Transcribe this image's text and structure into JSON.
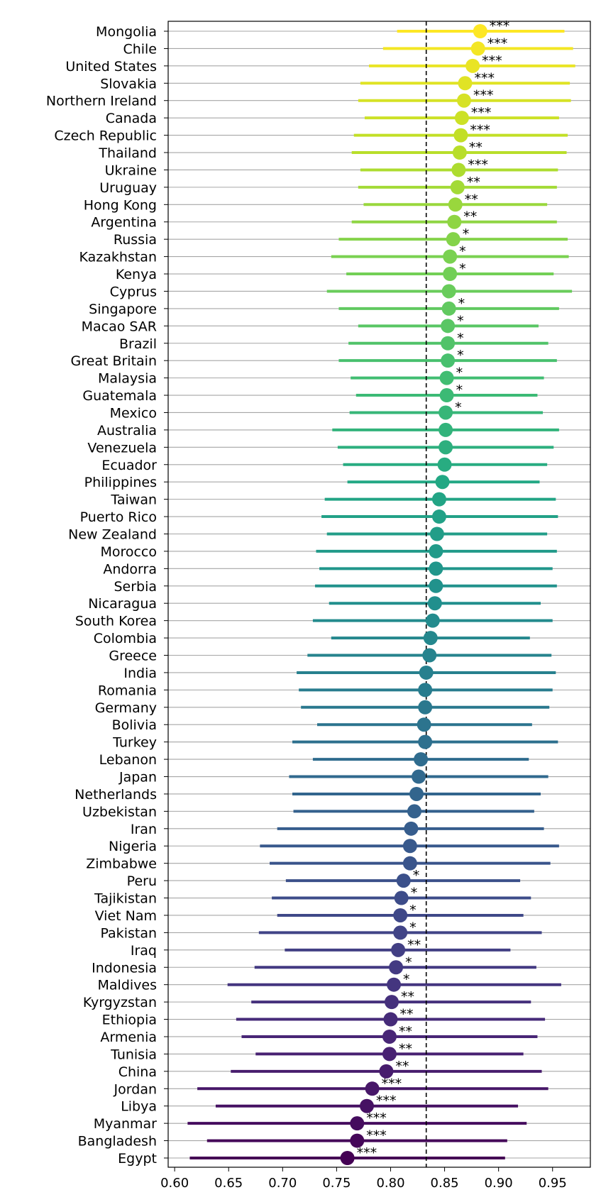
{
  "chart_data": {
    "type": "dot-range",
    "title": "",
    "xlabel": "",
    "ylabel": "",
    "xlim": [
      0.594,
      0.985
    ],
    "xticks": [
      0.6,
      0.65,
      0.7,
      0.75,
      0.8,
      0.85,
      0.9,
      0.95
    ],
    "xtick_labels": [
      "0.60",
      "0.65",
      "0.70",
      "0.75",
      "0.80",
      "0.85",
      "0.90",
      "0.95"
    ],
    "reference_line": 0.833,
    "colormap": "viridis",
    "series": [
      {
        "country": "Mongolia",
        "estimate": 0.883,
        "low": 0.806,
        "high": 0.961,
        "sig": "***"
      },
      {
        "country": "Chile",
        "estimate": 0.881,
        "low": 0.793,
        "high": 0.969,
        "sig": "***"
      },
      {
        "country": "United States",
        "estimate": 0.876,
        "low": 0.78,
        "high": 0.971,
        "sig": "***"
      },
      {
        "country": "Slovakia",
        "estimate": 0.869,
        "low": 0.772,
        "high": 0.966,
        "sig": "***"
      },
      {
        "country": "Northern Ireland",
        "estimate": 0.868,
        "low": 0.77,
        "high": 0.967,
        "sig": "***"
      },
      {
        "country": "Canada",
        "estimate": 0.866,
        "low": 0.776,
        "high": 0.956,
        "sig": "***"
      },
      {
        "country": "Czech Republic",
        "estimate": 0.865,
        "low": 0.766,
        "high": 0.964,
        "sig": "***"
      },
      {
        "country": "Thailand",
        "estimate": 0.864,
        "low": 0.764,
        "high": 0.963,
        "sig": "**"
      },
      {
        "country": "Ukraine",
        "estimate": 0.863,
        "low": 0.772,
        "high": 0.955,
        "sig": "***"
      },
      {
        "country": "Uruguay",
        "estimate": 0.862,
        "low": 0.77,
        "high": 0.954,
        "sig": "**"
      },
      {
        "country": "Hong Kong",
        "estimate": 0.86,
        "low": 0.775,
        "high": 0.945,
        "sig": "**"
      },
      {
        "country": "Argentina",
        "estimate": 0.859,
        "low": 0.764,
        "high": 0.954,
        "sig": "**"
      },
      {
        "country": "Russia",
        "estimate": 0.858,
        "low": 0.752,
        "high": 0.964,
        "sig": "*"
      },
      {
        "country": "Kazakhstan",
        "estimate": 0.855,
        "low": 0.745,
        "high": 0.965,
        "sig": "*"
      },
      {
        "country": "Kenya",
        "estimate": 0.855,
        "low": 0.759,
        "high": 0.951,
        "sig": "*"
      },
      {
        "country": "Cyprus",
        "estimate": 0.854,
        "low": 0.741,
        "high": 0.968,
        "sig": ""
      },
      {
        "country": "Singapore",
        "estimate": 0.854,
        "low": 0.752,
        "high": 0.956,
        "sig": "*"
      },
      {
        "country": "Macao SAR",
        "estimate": 0.853,
        "low": 0.77,
        "high": 0.937,
        "sig": "*"
      },
      {
        "country": "Brazil",
        "estimate": 0.853,
        "low": 0.761,
        "high": 0.946,
        "sig": "*"
      },
      {
        "country": "Great Britain",
        "estimate": 0.853,
        "low": 0.752,
        "high": 0.954,
        "sig": "*"
      },
      {
        "country": "Malaysia",
        "estimate": 0.852,
        "low": 0.763,
        "high": 0.942,
        "sig": "*"
      },
      {
        "country": "Guatemala",
        "estimate": 0.852,
        "low": 0.768,
        "high": 0.936,
        "sig": "*"
      },
      {
        "country": "Mexico",
        "estimate": 0.851,
        "low": 0.762,
        "high": 0.941,
        "sig": "*"
      },
      {
        "country": "Australia",
        "estimate": 0.851,
        "low": 0.746,
        "high": 0.956,
        "sig": ""
      },
      {
        "country": "Venezuela",
        "estimate": 0.851,
        "low": 0.751,
        "high": 0.951,
        "sig": ""
      },
      {
        "country": "Ecuador",
        "estimate": 0.85,
        "low": 0.756,
        "high": 0.945,
        "sig": ""
      },
      {
        "country": "Philippines",
        "estimate": 0.848,
        "low": 0.76,
        "high": 0.938,
        "sig": ""
      },
      {
        "country": "Taiwan",
        "estimate": 0.845,
        "low": 0.739,
        "high": 0.953,
        "sig": ""
      },
      {
        "country": "Puerto Rico",
        "estimate": 0.845,
        "low": 0.736,
        "high": 0.955,
        "sig": ""
      },
      {
        "country": "New Zealand",
        "estimate": 0.843,
        "low": 0.741,
        "high": 0.945,
        "sig": ""
      },
      {
        "country": "Morocco",
        "estimate": 0.842,
        "low": 0.731,
        "high": 0.954,
        "sig": ""
      },
      {
        "country": "Andorra",
        "estimate": 0.842,
        "low": 0.734,
        "high": 0.95,
        "sig": ""
      },
      {
        "country": "Serbia",
        "estimate": 0.842,
        "low": 0.73,
        "high": 0.954,
        "sig": ""
      },
      {
        "country": "Nicaragua",
        "estimate": 0.841,
        "low": 0.743,
        "high": 0.939,
        "sig": ""
      },
      {
        "country": "South Korea",
        "estimate": 0.839,
        "low": 0.728,
        "high": 0.95,
        "sig": ""
      },
      {
        "country": "Colombia",
        "estimate": 0.837,
        "low": 0.745,
        "high": 0.929,
        "sig": ""
      },
      {
        "country": "Greece",
        "estimate": 0.836,
        "low": 0.723,
        "high": 0.949,
        "sig": ""
      },
      {
        "country": "India",
        "estimate": 0.833,
        "low": 0.713,
        "high": 0.953,
        "sig": ""
      },
      {
        "country": "Romania",
        "estimate": 0.832,
        "low": 0.715,
        "high": 0.95,
        "sig": ""
      },
      {
        "country": "Germany",
        "estimate": 0.832,
        "low": 0.717,
        "high": 0.947,
        "sig": ""
      },
      {
        "country": "Bolivia",
        "estimate": 0.831,
        "low": 0.732,
        "high": 0.931,
        "sig": ""
      },
      {
        "country": "Turkey",
        "estimate": 0.832,
        "low": 0.709,
        "high": 0.955,
        "sig": ""
      },
      {
        "country": "Lebanon",
        "estimate": 0.828,
        "low": 0.728,
        "high": 0.928,
        "sig": ""
      },
      {
        "country": "Japan",
        "estimate": 0.826,
        "low": 0.706,
        "high": 0.946,
        "sig": ""
      },
      {
        "country": "Netherlands",
        "estimate": 0.824,
        "low": 0.709,
        "high": 0.939,
        "sig": ""
      },
      {
        "country": "Uzbekistan",
        "estimate": 0.822,
        "low": 0.71,
        "high": 0.933,
        "sig": ""
      },
      {
        "country": "Iran",
        "estimate": 0.819,
        "low": 0.695,
        "high": 0.942,
        "sig": ""
      },
      {
        "country": "Nigeria",
        "estimate": 0.818,
        "low": 0.679,
        "high": 0.956,
        "sig": ""
      },
      {
        "country": "Zimbabwe",
        "estimate": 0.818,
        "low": 0.688,
        "high": 0.948,
        "sig": ""
      },
      {
        "country": "Peru",
        "estimate": 0.812,
        "low": 0.703,
        "high": 0.92,
        "sig": "*"
      },
      {
        "country": "Tajikistan",
        "estimate": 0.81,
        "low": 0.69,
        "high": 0.93,
        "sig": "*"
      },
      {
        "country": "Viet Nam",
        "estimate": 0.809,
        "low": 0.695,
        "high": 0.923,
        "sig": "*"
      },
      {
        "country": "Pakistan",
        "estimate": 0.809,
        "low": 0.678,
        "high": 0.94,
        "sig": "*"
      },
      {
        "country": "Iraq",
        "estimate": 0.807,
        "low": 0.702,
        "high": 0.911,
        "sig": "**"
      },
      {
        "country": "Indonesia",
        "estimate": 0.805,
        "low": 0.674,
        "high": 0.935,
        "sig": "*"
      },
      {
        "country": "Maldives",
        "estimate": 0.803,
        "low": 0.649,
        "high": 0.958,
        "sig": "*"
      },
      {
        "country": "Kyrgyzstan",
        "estimate": 0.801,
        "low": 0.671,
        "high": 0.93,
        "sig": "**"
      },
      {
        "country": "Ethiopia",
        "estimate": 0.8,
        "low": 0.657,
        "high": 0.943,
        "sig": "**"
      },
      {
        "country": "Armenia",
        "estimate": 0.799,
        "low": 0.662,
        "high": 0.936,
        "sig": "**"
      },
      {
        "country": "Tunisia",
        "estimate": 0.799,
        "low": 0.675,
        "high": 0.923,
        "sig": "**"
      },
      {
        "country": "China",
        "estimate": 0.796,
        "low": 0.652,
        "high": 0.94,
        "sig": "**"
      },
      {
        "country": "Jordan",
        "estimate": 0.783,
        "low": 0.621,
        "high": 0.946,
        "sig": "***"
      },
      {
        "country": "Libya",
        "estimate": 0.778,
        "low": 0.638,
        "high": 0.918,
        "sig": "***"
      },
      {
        "country": "Myanmar",
        "estimate": 0.769,
        "low": 0.612,
        "high": 0.926,
        "sig": "***"
      },
      {
        "country": "Bangladesh",
        "estimate": 0.769,
        "low": 0.63,
        "high": 0.908,
        "sig": "***"
      },
      {
        "country": "Egypt",
        "estimate": 0.76,
        "low": 0.614,
        "high": 0.906,
        "sig": "***"
      }
    ]
  }
}
